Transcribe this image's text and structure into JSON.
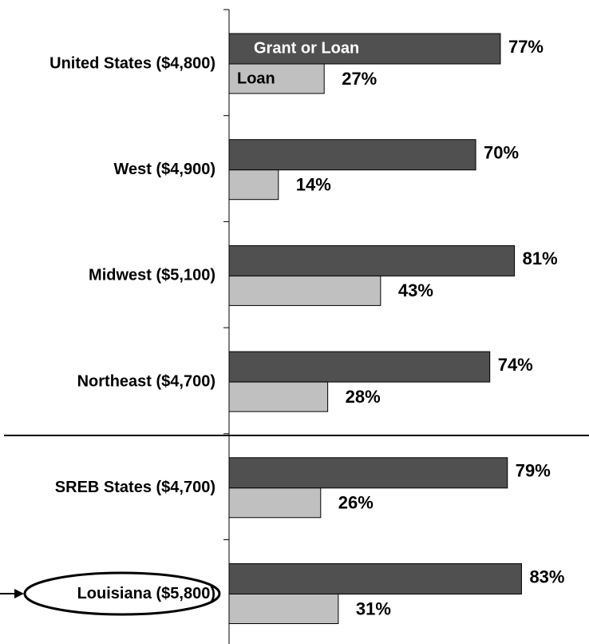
{
  "chart_data": {
    "type": "bar",
    "orientation": "horizontal",
    "categories": [
      "United States ($4,800)",
      "West ($4,900)",
      "Midwest ($5,100)",
      "Northeast ($4,700)",
      "SREB States ($4,700)",
      "Louisiana ($5,800)"
    ],
    "series": [
      {
        "name": "Grant or Loan",
        "color": "#505050",
        "values": [
          77,
          70,
          81,
          74,
          79,
          83
        ],
        "value_labels": [
          "77%",
          "70%",
          "81%",
          "74%",
          "79%",
          "83%"
        ]
      },
      {
        "name": "Loan",
        "color": "#c0c0c0",
        "values": [
          27,
          14,
          43,
          28,
          26,
          31
        ],
        "value_labels": [
          "27%",
          "14%",
          "43%",
          "28%",
          "26%",
          "31%"
        ]
      }
    ],
    "xlim": [
      0,
      100
    ]
  }
}
